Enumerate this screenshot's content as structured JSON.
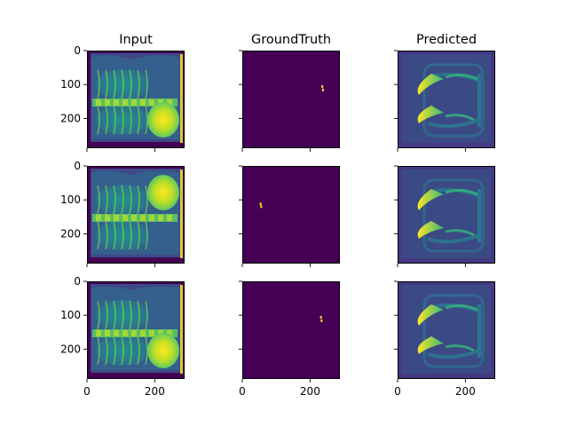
{
  "figure": {
    "columns": [
      "Input",
      "GroundTruth",
      "Predicted"
    ],
    "rows": 3
  },
  "chart_data": {
    "type": "heatmap",
    "layout": "3x3 image grid, shared x and y axes",
    "titles": [
      "Input",
      "GroundTruth",
      "Predicted"
    ],
    "xlim": [
      0,
      288
    ],
    "ylim": [
      288,
      0
    ],
    "x_ticks": [
      0,
      200
    ],
    "y_ticks": [
      0,
      100,
      200
    ],
    "colormap": "viridis",
    "colors": {
      "background_dark": "#440154",
      "predicted_bg": "#3b4a85",
      "input_mid": "#31a083",
      "bright": "#fde725"
    },
    "panels": [
      {
        "row": 0,
        "col": 0,
        "kind": "input",
        "heart_side": "right"
      },
      {
        "row": 0,
        "col": 1,
        "kind": "ground_truth",
        "marks": [
          {
            "x": 236,
            "y": 106
          },
          {
            "x": 238,
            "y": 116
          }
        ]
      },
      {
        "row": 0,
        "col": 2,
        "kind": "predicted"
      },
      {
        "row": 1,
        "col": 0,
        "kind": "input",
        "heart_side": "right-top"
      },
      {
        "row": 1,
        "col": 1,
        "kind": "ground_truth",
        "marks": [
          {
            "x": 54,
            "y": 112
          },
          {
            "x": 56,
            "y": 120
          }
        ]
      },
      {
        "row": 1,
        "col": 2,
        "kind": "predicted"
      },
      {
        "row": 2,
        "col": 0,
        "kind": "input",
        "heart_side": "right"
      },
      {
        "row": 2,
        "col": 1,
        "kind": "ground_truth",
        "marks": [
          {
            "x": 232,
            "y": 106
          },
          {
            "x": 234,
            "y": 116
          }
        ]
      },
      {
        "row": 2,
        "col": 2,
        "kind": "predicted"
      }
    ]
  }
}
